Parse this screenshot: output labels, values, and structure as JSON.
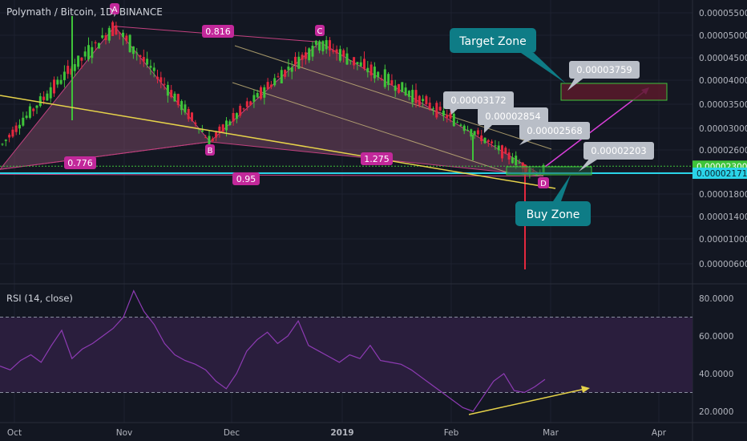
{
  "header": {
    "title": "Polymath / Bitcoin, 1D, BINANCE"
  },
  "colors": {
    "background": "#131722",
    "up": "#26a69a",
    "up_candle": "#3fc43a",
    "down": "#e3283e",
    "pattern_fill": "#8a4f6e",
    "pattern_line": "#c2417f",
    "pattern_label": "#c2289a",
    "support_line": "#2ad4e8",
    "trend_line": "#e6d24a",
    "projection": "#d93fd9",
    "zone_label": "#0e7c86",
    "callout": "#b9bec7",
    "rsi_band": "#2a1e3d",
    "rsi_line": "#8e3bb4"
  },
  "price_axis": {
    "ticks": [
      "0.00005500",
      "0.00005000",
      "0.00004500",
      "0.00004000",
      "0.00003500",
      "0.00003000",
      "0.00002600",
      "0.00002200",
      "0.00001800",
      "0.00001400",
      "0.00001000",
      "0.00000600"
    ],
    "current_price": "0.00002300",
    "support_price": "0.00002171"
  },
  "time_axis": {
    "labels": [
      "Oct",
      "Nov",
      "Dec",
      "2019",
      "Feb",
      "Mar",
      "Apr"
    ]
  },
  "pattern": {
    "points": [
      "A",
      "B",
      "C",
      "D"
    ],
    "ratios": [
      "0.816",
      "0.776",
      "1.275",
      "0.95"
    ]
  },
  "callouts": [
    "0.00003172",
    "0.00002854",
    "0.00002568",
    "0.00002203",
    "0.00003759"
  ],
  "zones": {
    "target": "Target Zone",
    "buy": "Buy Zone"
  },
  "rsi": {
    "title": "RSI (14, close)",
    "ticks": [
      "80.0000",
      "60.0000",
      "40.0000",
      "20.0000"
    ]
  },
  "chart_data": {
    "type": "candlestick",
    "title": "Polymath / Bitcoin, 1D, BINANCE",
    "interval": "1D",
    "exchange": "BINANCE",
    "x": [
      "Oct",
      "Nov",
      "Dec",
      "2019",
      "Feb",
      "Mar",
      "Apr"
    ],
    "y_ticks": [
      5.5e-05,
      5e-05,
      4.5e-05,
      4e-05,
      3.5e-05,
      3e-05,
      2.6e-05,
      2.2e-05,
      1.8e-05,
      1.4e-05,
      1e-05,
      6e-06
    ],
    "current_price": 2.3e-05,
    "support_level": 2.171e-05,
    "price_path": [
      {
        "point": "start",
        "price": 2.65e-05
      },
      {
        "point": "A",
        "price": 5.2e-05
      },
      {
        "point": "B",
        "price": 2.75e-05
      },
      {
        "point": "C",
        "price": 4.85e-05
      },
      {
        "point": "D",
        "price": 2.12e-05
      }
    ],
    "fib_ratios": {
      "XA": 0.776,
      "AB_C": 0.816,
      "BC_D": 1.275,
      "XD": 0.95
    },
    "annotations": [
      {
        "label": "Target Zone",
        "price": 3.759e-05
      },
      {
        "label": "Buy Zone",
        "price": 2.203e-05
      },
      {
        "label": "callout",
        "price": 3.172e-05
      },
      {
        "label": "callout",
        "price": 2.854e-05
      },
      {
        "label": "callout",
        "price": 2.568e-05
      }
    ],
    "rsi": {
      "period": 14,
      "source": "close",
      "ticks": [
        80,
        60,
        40,
        20
      ],
      "bands": [
        70,
        30
      ],
      "values": [
        44,
        42,
        47,
        50,
        46,
        55,
        63,
        48,
        53,
        56,
        60,
        64,
        70,
        84,
        73,
        66,
        56,
        50,
        47,
        45,
        42,
        36,
        32,
        40,
        52,
        58,
        62,
        56,
        60,
        68,
        55,
        52,
        49,
        46,
        50,
        48,
        55,
        47,
        46,
        45,
        42,
        38,
        34,
        30,
        26,
        22,
        20,
        28,
        36,
        40,
        31,
        30,
        33,
        37
      ]
    }
  }
}
